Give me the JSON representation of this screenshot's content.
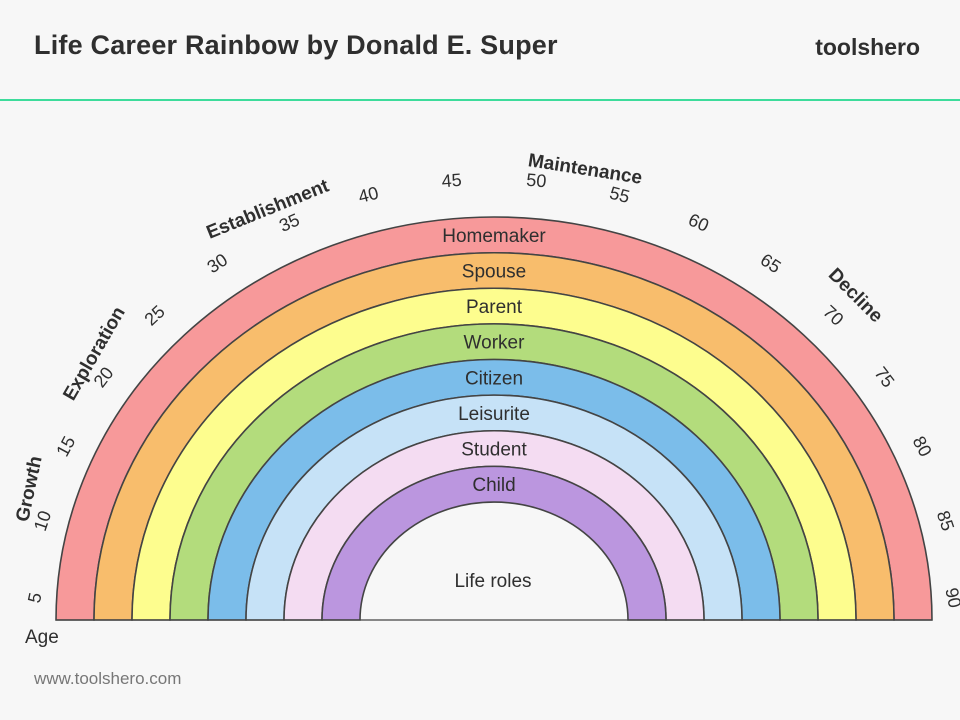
{
  "header": {
    "title": "Life Career Rainbow by Donald E. Super",
    "brand": "toolshero"
  },
  "footer": {
    "url": "www.toolshero.com"
  },
  "diagram": {
    "center_label": "Life roles",
    "age_label": "Age",
    "roles": [
      {
        "name": "Homemaker",
        "color": "#f7999a"
      },
      {
        "name": "Spouse",
        "color": "#f8bd6c"
      },
      {
        "name": "Parent",
        "color": "#fdfd8e"
      },
      {
        "name": "Worker",
        "color": "#b3dc7c"
      },
      {
        "name": "Citizen",
        "color": "#7bbdea"
      },
      {
        "name": "Leisurite",
        "color": "#c6e2f7"
      },
      {
        "name": "Student",
        "color": "#f4dcf2"
      },
      {
        "name": "Child",
        "color": "#bb96df"
      }
    ],
    "ages": [
      5,
      10,
      15,
      20,
      25,
      30,
      35,
      40,
      45,
      50,
      55,
      60,
      65,
      70,
      75,
      80,
      85,
      90
    ],
    "stages": [
      "Growth",
      "Exploration",
      "Establishment",
      "Maintenance",
      "Decline"
    ]
  }
}
